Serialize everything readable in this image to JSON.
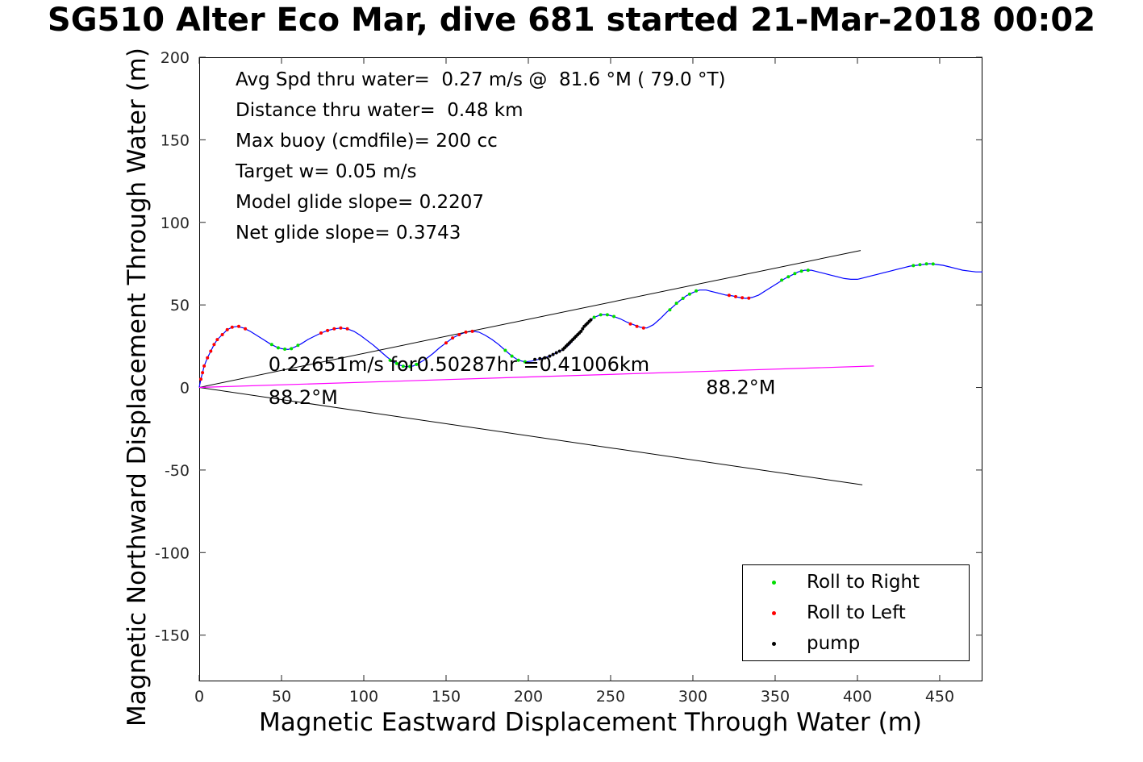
{
  "figure": {
    "title": "SG510 Alter Eco Mar, dive 681 started 21-Mar-2018 00:02",
    "background": "#ffffff"
  },
  "chart_data": {
    "type": "line",
    "title": "SG510 Alter Eco Mar, dive 681 started 21-Mar-2018 00:02",
    "xlabel": "Magnetic Eastward Displacement Through Water (m)",
    "ylabel": "Magnetic Northward Displacement Through Water (m)",
    "xlim": [
      0,
      476
    ],
    "ylim": [
      -178,
      200
    ],
    "xticks": [
      0,
      50,
      100,
      150,
      200,
      250,
      300,
      350,
      400,
      450
    ],
    "yticks": [
      -150,
      -100,
      -50,
      0,
      50,
      100,
      150,
      200
    ],
    "grid": false,
    "info_lines": [
      "Avg Spd thru water=  0.27 m/s @  81.6 °M ( 79.0 °T)",
      "Distance thru water=  0.48 km",
      "Max buoy (cmdfile)= 200 cc",
      "Target w= 0.05 m/s",
      "Model glide slope= 0.2207",
      "Net glide slope= 0.3743"
    ],
    "annotations": [
      {
        "text": "0.22651m/s for0.50287hr =0.41006km",
        "x": 42,
        "y": 10
      },
      {
        "text": "88.2°M",
        "x": 42,
        "y": -10
      },
      {
        "text": "88.2°M",
        "x": 308,
        "y": -4
      }
    ],
    "series": [
      {
        "name": "track-through-water",
        "color": "#0000ff",
        "width": 1.2,
        "points": [
          [
            0,
            0
          ],
          [
            1,
            5
          ],
          [
            2,
            9
          ],
          [
            3,
            13
          ],
          [
            5,
            18
          ],
          [
            7,
            22
          ],
          [
            9,
            26
          ],
          [
            11,
            29
          ],
          [
            14,
            32
          ],
          [
            17,
            35
          ],
          [
            20,
            36.5
          ],
          [
            23,
            37
          ],
          [
            27,
            36
          ],
          [
            31,
            34
          ],
          [
            35,
            31.5
          ],
          [
            39,
            29
          ],
          [
            43,
            26.5
          ],
          [
            47,
            24.5
          ],
          [
            50,
            23.5
          ],
          [
            54,
            23
          ],
          [
            58,
            24.5
          ],
          [
            62,
            26.5
          ],
          [
            66,
            29
          ],
          [
            70,
            31
          ],
          [
            74,
            33
          ],
          [
            78,
            34.5
          ],
          [
            82,
            35.5
          ],
          [
            86,
            36
          ],
          [
            90,
            35.5
          ],
          [
            94,
            34
          ],
          [
            98,
            31.5
          ],
          [
            102,
            28.5
          ],
          [
            106,
            25.5
          ],
          [
            110,
            22
          ],
          [
            114,
            18.5
          ],
          [
            118,
            15.5
          ],
          [
            122,
            13.5
          ],
          [
            126,
            12.5
          ],
          [
            130,
            13
          ],
          [
            134,
            15
          ],
          [
            138,
            17.5
          ],
          [
            142,
            20.5
          ],
          [
            146,
            24
          ],
          [
            150,
            27
          ],
          [
            154,
            30
          ],
          [
            158,
            32
          ],
          [
            162,
            33.5
          ],
          [
            166,
            34
          ],
          [
            170,
            33.5
          ],
          [
            174,
            31.5
          ],
          [
            178,
            29
          ],
          [
            182,
            26
          ],
          [
            186,
            22.5
          ],
          [
            190,
            19
          ],
          [
            194,
            16.5
          ],
          [
            198,
            15.5
          ],
          [
            202,
            16
          ],
          [
            206,
            17
          ],
          [
            210,
            18
          ],
          [
            214,
            19.5
          ],
          [
            218,
            21.5
          ],
          [
            222,
            23.5
          ],
          [
            225,
            26
          ],
          [
            228,
            29.5
          ],
          [
            231,
            33
          ],
          [
            234,
            37
          ],
          [
            237,
            40
          ],
          [
            240,
            42.5
          ],
          [
            244,
            44
          ],
          [
            248,
            44
          ],
          [
            252,
            43
          ],
          [
            256,
            41.5
          ],
          [
            260,
            39.5
          ],
          [
            264,
            38
          ],
          [
            268,
            36.5
          ],
          [
            272,
            36
          ],
          [
            276,
            38
          ],
          [
            280,
            41.5
          ],
          [
            284,
            45.5
          ],
          [
            288,
            49
          ],
          [
            292,
            52.5
          ],
          [
            296,
            55.5
          ],
          [
            300,
            57.5
          ],
          [
            304,
            59
          ],
          [
            308,
            59
          ],
          [
            312,
            58
          ],
          [
            316,
            57
          ],
          [
            320,
            56
          ],
          [
            324,
            55.5
          ],
          [
            328,
            54.5
          ],
          [
            332,
            54
          ],
          [
            336,
            54.5
          ],
          [
            340,
            56
          ],
          [
            344,
            58.5
          ],
          [
            348,
            61
          ],
          [
            352,
            63.5
          ],
          [
            356,
            66
          ],
          [
            360,
            68
          ],
          [
            364,
            70
          ],
          [
            368,
            71
          ],
          [
            372,
            71
          ],
          [
            376,
            70
          ],
          [
            380,
            69
          ],
          [
            384,
            68
          ],
          [
            388,
            67
          ],
          [
            392,
            66
          ],
          [
            396,
            65.5
          ],
          [
            400,
            65.5
          ],
          [
            404,
            66.5
          ],
          [
            408,
            67.5
          ],
          [
            412,
            68.5
          ],
          [
            416,
            69.5
          ],
          [
            420,
            70.5
          ],
          [
            424,
            71.5
          ],
          [
            428,
            72.5
          ],
          [
            432,
            73.5
          ],
          [
            436,
            74
          ],
          [
            440,
            74.5
          ],
          [
            444,
            75
          ],
          [
            448,
            74.5
          ],
          [
            452,
            74
          ],
          [
            456,
            73
          ],
          [
            460,
            72
          ],
          [
            464,
            71
          ],
          [
            468,
            70.5
          ],
          [
            472,
            70
          ],
          [
            476,
            70
          ]
        ]
      },
      {
        "name": "bearing-fan-upper",
        "color": "#000000",
        "width": 1,
        "points": [
          [
            0,
            0
          ],
          [
            402,
            83
          ]
        ]
      },
      {
        "name": "bearing-fan-lower",
        "color": "#000000",
        "width": 1,
        "points": [
          [
            0,
            0
          ],
          [
            403,
            -59
          ]
        ]
      },
      {
        "name": "avg-displacement-line",
        "color": "#ff00ff",
        "width": 1.2,
        "points": [
          [
            0,
            0
          ],
          [
            410,
            13
          ]
        ]
      }
    ],
    "markers": [
      {
        "name": "roll-to-right",
        "color": "#00dd00",
        "points": [
          [
            44,
            26
          ],
          [
            48,
            24
          ],
          [
            52,
            23.2
          ],
          [
            56,
            23.5
          ],
          [
            60,
            25.5
          ],
          [
            116,
            16.5
          ],
          [
            120,
            14.5
          ],
          [
            124,
            12.8
          ],
          [
            128,
            12.7
          ],
          [
            132,
            14
          ],
          [
            186,
            22.5
          ],
          [
            190,
            19
          ],
          [
            194,
            16.5
          ],
          [
            198,
            15.5
          ],
          [
            240,
            42.5
          ],
          [
            244,
            44
          ],
          [
            248,
            44
          ],
          [
            252,
            43
          ],
          [
            286,
            47
          ],
          [
            290,
            51
          ],
          [
            294,
            54
          ],
          [
            298,
            56.5
          ],
          [
            302,
            58.5
          ],
          [
            354,
            65
          ],
          [
            358,
            67
          ],
          [
            362,
            69
          ],
          [
            366,
            70.5
          ],
          [
            370,
            71
          ],
          [
            434,
            73.8
          ],
          [
            438,
            74.4
          ],
          [
            442,
            74.9
          ],
          [
            446,
            74.8
          ]
        ]
      },
      {
        "name": "roll-to-left",
        "color": "#ff0000",
        "points": [
          [
            1,
            5
          ],
          [
            2,
            9
          ],
          [
            3,
            13
          ],
          [
            5,
            18
          ],
          [
            7,
            22
          ],
          [
            9,
            26
          ],
          [
            11,
            29
          ],
          [
            14,
            32
          ],
          [
            17,
            35
          ],
          [
            20,
            36.5
          ],
          [
            24,
            37
          ],
          [
            28,
            35.5
          ],
          [
            74,
            33
          ],
          [
            78,
            34.5
          ],
          [
            82,
            35.5
          ],
          [
            86,
            36
          ],
          [
            90,
            35.5
          ],
          [
            150,
            27
          ],
          [
            154,
            30
          ],
          [
            158,
            32
          ],
          [
            162,
            33.5
          ],
          [
            166,
            34
          ],
          [
            262,
            38.5
          ],
          [
            266,
            37
          ],
          [
            270,
            36
          ],
          [
            322,
            55.8
          ],
          [
            326,
            55
          ],
          [
            330,
            54.3
          ],
          [
            334,
            54.1
          ]
        ]
      },
      {
        "name": "pump",
        "color": "#000000",
        "points": [
          [
            204,
            17
          ],
          [
            207,
            17.5
          ],
          [
            210,
            18
          ],
          [
            213,
            19
          ],
          [
            215,
            20
          ],
          [
            217,
            21
          ],
          [
            219,
            22
          ],
          [
            221,
            23
          ],
          [
            222,
            24
          ],
          [
            223,
            25
          ],
          [
            224,
            26
          ],
          [
            225,
            27
          ],
          [
            226,
            28
          ],
          [
            227,
            29
          ],
          [
            228,
            30
          ],
          [
            229,
            31
          ],
          [
            230,
            32
          ],
          [
            231,
            33
          ],
          [
            232,
            34
          ],
          [
            233,
            35.5
          ],
          [
            234,
            37
          ],
          [
            235,
            38
          ],
          [
            236,
            39
          ],
          [
            237,
            40
          ],
          [
            238,
            41
          ]
        ]
      }
    ],
    "legend": {
      "position": "bottom-right",
      "entries": [
        {
          "label": "Roll to Right",
          "color": "#00dd00"
        },
        {
          "label": "Roll to Left",
          "color": "#ff0000"
        },
        {
          "label": "pump",
          "color": "#000000"
        }
      ]
    }
  }
}
